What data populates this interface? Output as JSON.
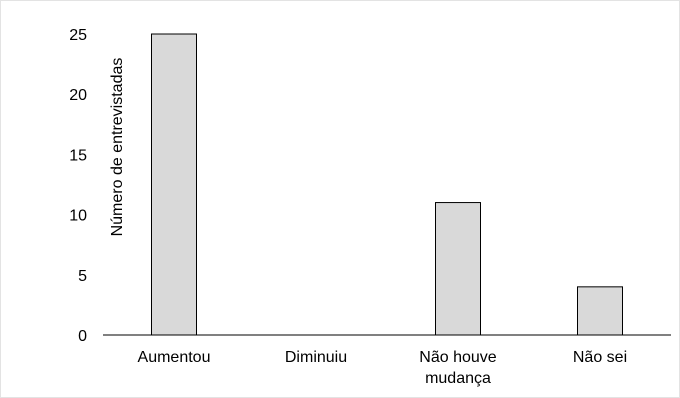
{
  "chart_data": {
    "type": "bar",
    "categories": [
      "Aumentou",
      "Diminuiu",
      "Não houve mudança",
      "Não sei"
    ],
    "category_lines": [
      [
        "Aumentou"
      ],
      [
        "Diminuiu"
      ],
      [
        "Não houve",
        "mudança"
      ],
      [
        "Não sei"
      ]
    ],
    "values": [
      25,
      0,
      11,
      4
    ],
    "title": "",
    "xlabel": "",
    "ylabel": "Número de entrevistadas",
    "ylim": [
      0,
      25
    ],
    "yticks": [
      0,
      5,
      10,
      15,
      20,
      25
    ],
    "grid": false,
    "legend": "none",
    "bar_color": "#d9d9d9",
    "bar_edge_color": "#000000"
  }
}
